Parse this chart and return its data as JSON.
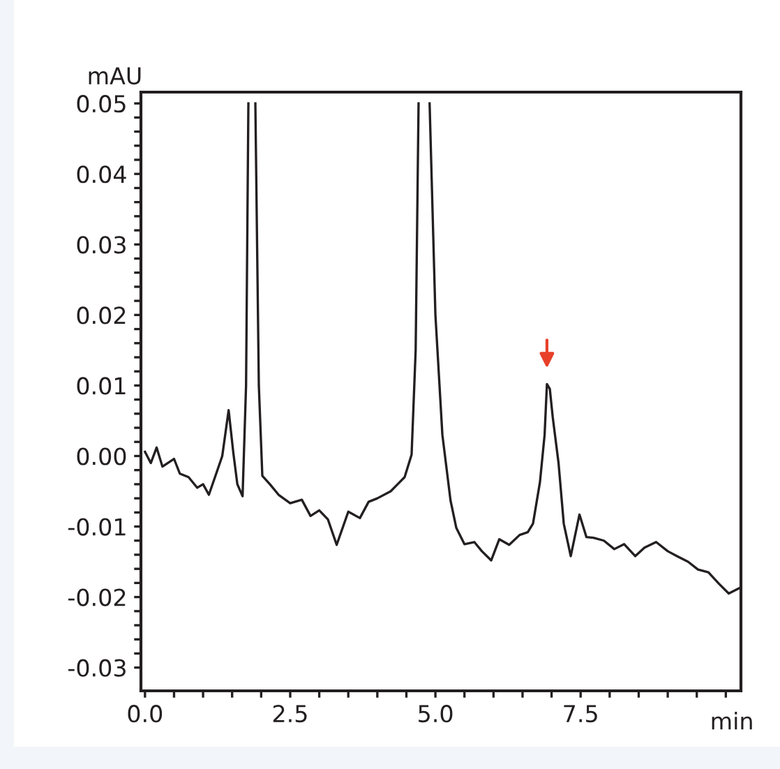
{
  "chart_data": {
    "type": "line",
    "xlabel": "min",
    "ylabel": "mAU",
    "x": [
      0.0,
      0.1,
      0.2,
      0.3,
      0.5,
      0.6,
      0.75,
      0.9,
      1.0,
      1.1,
      1.23,
      1.33,
      1.44,
      1.52,
      1.59,
      1.68,
      1.74,
      1.78,
      1.84,
      1.9,
      1.96,
      2.02,
      2.15,
      2.3,
      2.5,
      2.7,
      2.85,
      3.0,
      3.15,
      3.3,
      3.5,
      3.7,
      3.85,
      4.0,
      4.23,
      4.35,
      4.47,
      4.59,
      4.66,
      4.71,
      4.8,
      4.9,
      5.0,
      5.12,
      5.26,
      5.36,
      5.5,
      5.67,
      5.8,
      5.96,
      6.1,
      6.27,
      6.45,
      6.59,
      6.68,
      6.8,
      6.88,
      6.92,
      6.97,
      7.02,
      7.12,
      7.21,
      7.33,
      7.48,
      7.6,
      7.72,
      7.9,
      8.08,
      8.25,
      8.44,
      8.6,
      8.8,
      9.0,
      9.16,
      9.35,
      9.52,
      9.7,
      9.88,
      10.05,
      10.24
    ],
    "values": [
      0.0006,
      -0.001,
      0.0012,
      -0.0015,
      -0.0004,
      -0.0025,
      -0.003,
      -0.0045,
      -0.004,
      -0.0055,
      -0.0024,
      0.0,
      0.0065,
      0.0005,
      -0.004,
      -0.0057,
      0.01,
      0.05,
      null,
      0.05,
      0.01,
      -0.0028,
      -0.004,
      -0.0055,
      -0.0067,
      -0.0062,
      -0.0085,
      -0.0077,
      -0.009,
      -0.0126,
      -0.0079,
      -0.0088,
      -0.0065,
      -0.006,
      -0.005,
      -0.004,
      -0.003,
      0.0002,
      0.015,
      0.05,
      null,
      0.05,
      0.02,
      0.003,
      -0.0063,
      -0.0102,
      -0.0125,
      -0.0122,
      -0.0135,
      -0.0148,
      -0.0118,
      -0.0126,
      -0.0112,
      -0.0108,
      -0.0096,
      -0.0037,
      0.003,
      0.0102,
      0.0095,
      0.0055,
      -0.001,
      -0.0096,
      -0.0142,
      -0.0083,
      -0.0115,
      -0.0116,
      -0.012,
      -0.0132,
      -0.0125,
      -0.0142,
      -0.013,
      -0.0122,
      -0.0135,
      -0.0142,
      -0.015,
      -0.0161,
      -0.0165,
      -0.0181,
      -0.0195,
      -0.0187
    ],
    "color": "#231f20",
    "xlim": [
      -0.07,
      10.26
    ],
    "ylim": [
      -0.0333,
      0.0516
    ],
    "xticks": [
      {
        "value": 0,
        "label": "0.0"
      },
      {
        "value": 0.5,
        "label": null
      },
      {
        "value": 1,
        "label": null
      },
      {
        "value": 1.5,
        "label": null
      },
      {
        "value": 2,
        "label": null
      },
      {
        "value": 2.5,
        "label": "2.5"
      },
      {
        "value": 3,
        "label": null
      },
      {
        "value": 3.5,
        "label": null
      },
      {
        "value": 4,
        "label": null
      },
      {
        "value": 4.5,
        "label": null
      },
      {
        "value": 5,
        "label": "5.0"
      },
      {
        "value": 5.5,
        "label": null
      },
      {
        "value": 6,
        "label": null
      },
      {
        "value": 6.5,
        "label": null
      },
      {
        "value": 7,
        "label": null
      },
      {
        "value": 7.5,
        "label": "7.5"
      },
      {
        "value": 8,
        "label": null
      },
      {
        "value": 8.5,
        "label": null
      },
      {
        "value": 9,
        "label": null
      },
      {
        "value": 9.5,
        "label": null
      },
      {
        "value": 10,
        "label": null
      }
    ],
    "yticks": [
      {
        "value": -0.03,
        "label": "-0.03"
      },
      {
        "value": -0.028,
        "label": null
      },
      {
        "value": -0.026,
        "label": null
      },
      {
        "value": -0.024,
        "label": null
      },
      {
        "value": -0.022,
        "label": null
      },
      {
        "value": -0.02,
        "label": "-0.02"
      },
      {
        "value": -0.018,
        "label": null
      },
      {
        "value": -0.016,
        "label": null
      },
      {
        "value": -0.014,
        "label": null
      },
      {
        "value": -0.012,
        "label": null
      },
      {
        "value": -0.01,
        "label": "-0.01"
      },
      {
        "value": -0.008,
        "label": null
      },
      {
        "value": -0.006,
        "label": null
      },
      {
        "value": -0.004,
        "label": null
      },
      {
        "value": -0.002,
        "label": null
      },
      {
        "value": 0,
        "label": "0.00"
      },
      {
        "value": 0.002,
        "label": null
      },
      {
        "value": 0.004,
        "label": null
      },
      {
        "value": 0.006,
        "label": null
      },
      {
        "value": 0.008,
        "label": null
      },
      {
        "value": 0.01,
        "label": "0.01"
      },
      {
        "value": 0.012,
        "label": null
      },
      {
        "value": 0.014,
        "label": null
      },
      {
        "value": 0.016,
        "label": null
      },
      {
        "value": 0.018,
        "label": null
      },
      {
        "value": 0.02,
        "label": "0.02"
      },
      {
        "value": 0.022,
        "label": null
      },
      {
        "value": 0.024,
        "label": null
      },
      {
        "value": 0.026,
        "label": null
      },
      {
        "value": 0.028,
        "label": null
      },
      {
        "value": 0.03,
        "label": "0.03"
      },
      {
        "value": 0.032,
        "label": null
      },
      {
        "value": 0.034,
        "label": null
      },
      {
        "value": 0.036,
        "label": null
      },
      {
        "value": 0.038,
        "label": null
      },
      {
        "value": 0.04,
        "label": "0.04"
      },
      {
        "value": 0.042,
        "label": null
      },
      {
        "value": 0.044,
        "label": null
      },
      {
        "value": 0.046,
        "label": null
      },
      {
        "value": 0.048,
        "label": null
      },
      {
        "value": 0.05,
        "label": "0.05"
      }
    ],
    "grid": false,
    "legend": false,
    "marker": "none",
    "line_style": "solid"
  }
}
